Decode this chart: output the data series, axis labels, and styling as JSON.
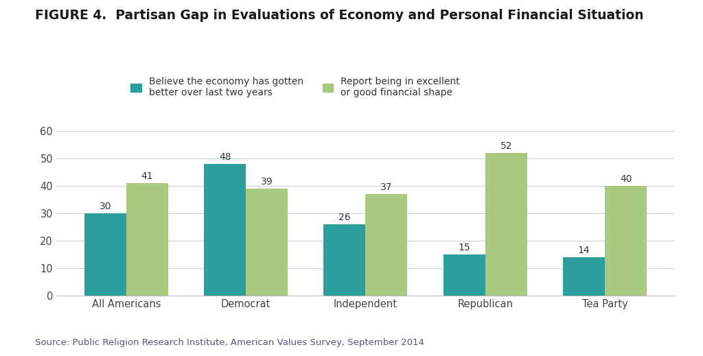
{
  "title": "FIGURE 4.  Partisan Gap in Evaluations of Economy and Personal Financial Situation",
  "categories": [
    "All Americans",
    "Democrat",
    "Independent",
    "Republican",
    "Tea Party"
  ],
  "economy_values": [
    30,
    48,
    26,
    15,
    14
  ],
  "financial_values": [
    41,
    39,
    37,
    52,
    40
  ],
  "economy_color": "#2b9ea0",
  "financial_color": "#a8c97f",
  "legend_economy": "Believe the economy has gotten\nbetter over last two years",
  "legend_financial": "Report being in excellent\nor good financial shape",
  "ylim": [
    0,
    65
  ],
  "yticks": [
    0,
    10,
    20,
    30,
    40,
    50,
    60
  ],
  "source": "Source: Public Religion Research Institute, American Values Survey, September 2014",
  "bar_width": 0.35,
  "background_color": "#ffffff",
  "title_fontsize": 13.5,
  "tick_fontsize": 10.5,
  "annotation_fontsize": 10,
  "source_fontsize": 9.5,
  "legend_fontsize": 10
}
